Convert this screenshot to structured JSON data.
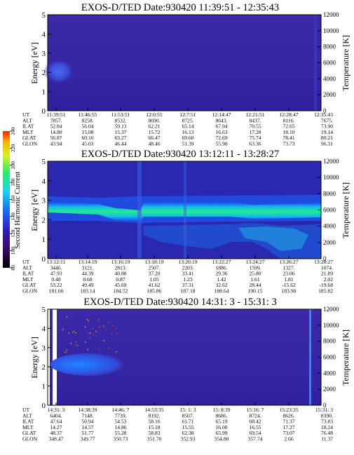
{
  "panels": [
    {
      "title": "EXOS-D/TED   Date:930420  11:39:51 - 12:35:43",
      "y_label": "Energy [eV]",
      "y2_label": "Temperature [K]",
      "y_ticks": [
        "0",
        "1",
        "2",
        "3",
        "4",
        "5"
      ],
      "y2_ticks": [
        "0",
        "2000",
        "4000",
        "6000",
        "8000",
        "10000",
        "12000"
      ],
      "table": {
        "rows": [
          "UT",
          "ALT",
          "ILAT",
          "MLT",
          "GLAT",
          "GLON"
        ],
        "columns": [
          [
            "11:39:51",
            "7857.",
            "52.84",
            "14.80",
            "56.87",
            "43.94"
          ],
          [
            "11:46:55",
            "8258.",
            "56.04",
            "15.08",
            "60.10",
            "45.03"
          ],
          [
            "11:53:51",
            "8532.",
            "59.13",
            "15.37",
            "63.27",
            "46.44"
          ],
          [
            "12:0:55",
            "8690.",
            "62.21",
            "15.72",
            "66.47",
            "48.46"
          ],
          [
            "12:7:51",
            "8725.",
            "65.14",
            "16.13",
            "69.60",
            "51.39"
          ],
          [
            "12:14:47",
            "8643.",
            "67.94",
            "16.63",
            "72.69",
            "55.90"
          ],
          [
            "12:21:51",
            "8437.",
            "70.55",
            "17.28",
            "75.74",
            "63.36"
          ],
          [
            "12:28:47",
            "8116.",
            "72.65",
            "18.10",
            "78.41",
            "73.73"
          ],
          [
            "12:35:43",
            "7675.",
            "73.90",
            "19.14",
            "80.21",
            "96.31"
          ]
        ]
      }
    },
    {
      "title": "EXOS-D/TED   Date:930420  13:12:11 - 13:28:27",
      "y_label": "Energy [eV]",
      "y2_label": "Temperature [K]",
      "y_ticks": [
        "0",
        "1",
        "2",
        "3",
        "4",
        "5"
      ],
      "y2_ticks": [
        "0",
        "2000",
        "4000",
        "6000",
        "8000",
        "10000",
        "12000"
      ],
      "table": {
        "rows": [
          "UT",
          "ALT",
          "ILAT",
          "MLT",
          "GLAT",
          "GLON"
        ],
        "columns": [
          [
            "13:12:11",
            "3446.",
            "47.93",
            "0.48",
            "53.22",
            "181.60"
          ],
          [
            "13:14:19",
            "3121.",
            "44.39",
            "0.68",
            "49.49",
            "183.14"
          ],
          [
            "13:16:19",
            "2813.",
            "40.88",
            "0.87",
            "45.69",
            "184.52"
          ],
          [
            "13:18:19",
            "2507.",
            "37.20",
            "1.05",
            "41.62",
            "185.86"
          ],
          [
            "13:20:19",
            "2203.",
            "33.41",
            "1.23",
            "37.31",
            "187.18"
          ],
          [
            "13:22:27",
            "1886.",
            "29.36",
            "1.42",
            "32.62",
            "188.64"
          ],
          [
            "13:24:27",
            "1599.",
            "25.80",
            "1.61",
            "28.44",
            "190.15"
          ],
          [
            "13:26:27",
            "1327.",
            "23.06",
            "1.81",
            "-15.62",
            "183.90"
          ],
          [
            "13:28:27",
            "1074.",
            "21.89",
            "2.02",
            "-19.68",
            "185.82"
          ]
        ]
      }
    },
    {
      "title": "EXOS-D/TED   Date:930420  14:31: 3 - 15:31: 3",
      "y_label": "Energy [eV]",
      "y2_label": "Temperature [K]",
      "y_ticks": [
        "0",
        "1",
        "2",
        "3",
        "4",
        "5"
      ],
      "y2_ticks": [
        "0",
        "2000",
        "4000",
        "6000",
        "8000",
        "10000",
        "12000"
      ],
      "table": {
        "rows": [
          "UT",
          "ALT",
          "ILAT",
          "MLT",
          "GLAT",
          "GLON"
        ],
        "columns": [
          [
            "14:31: 3",
            "6404.",
            "47.64",
            "14.27",
            "48.37",
            "348.47"
          ],
          [
            "14:38:39",
            "7148.",
            "50.94",
            "14.57",
            "51.77",
            "349.77"
          ],
          [
            "14:46: 7",
            "7739.",
            "54.53",
            "14.86",
            "55.28",
            "350.73"
          ],
          [
            "14:53:35",
            "8192.",
            "58.16",
            "15.18",
            "58.83",
            "351.70"
          ],
          [
            "15: 1: 3",
            "8507.",
            "61.71",
            "15.55",
            "62.38",
            "352.93"
          ],
          [
            "15: 8:39",
            "8686.",
            "65.19",
            "16.00",
            "65.99",
            "354.80"
          ],
          [
            "15:16: 7",
            "8724.",
            "68.42",
            "16.55",
            "69.54",
            "357.74"
          ],
          [
            "15:23:35",
            "8626.",
            "71.37",
            "17.27",
            "73.07",
            "2.66"
          ],
          [
            "15:31: 3",
            "8390.",
            "73.83",
            "18.24",
            "76.48",
            "11.37"
          ]
        ]
      }
    }
  ],
  "colorbar": {
    "label": "Second Harmonic Current",
    "ticks": [
      "80",
      "100",
      "120",
      "140",
      "160",
      "180",
      "200",
      "220",
      "240"
    ],
    "colors": [
      "#000000",
      "#3a0a68",
      "#2b1ec8",
      "#1a6ef5",
      "#14d6f0",
      "#26f066",
      "#d8f020",
      "#ffb400",
      "#ff1e00"
    ]
  },
  "chart_data": [
    {
      "type": "heatmap",
      "title": "EXOS-D/TED   Date:930420  11:39:51 - 12:35:43",
      "xlabel": "UT",
      "ylabel": "Energy [eV]",
      "y2label": "Temperature [K]",
      "ylim": [
        0,
        5
      ],
      "y2lim": [
        0,
        12000
      ],
      "x_ticks": [
        "11:39:51",
        "11:46:55",
        "11:53:51",
        "12:0:55",
        "12:7:51",
        "12:14:47",
        "12:21:51",
        "12:28:47",
        "12:35:43"
      ],
      "colorbar_label": "Second Harmonic Current",
      "colorbar_range": [
        80,
        240
      ],
      "bands": [
        {
          "x_start": "11:39:51",
          "x_end": "11:50:00",
          "energy_low": 1.6,
          "energy_high": 2.6,
          "level": 115
        },
        {
          "x_start": "11:39:51",
          "x_end": "12:35:43",
          "energy_low": 0.0,
          "energy_high": 5.0,
          "level": 105
        }
      ]
    },
    {
      "type": "heatmap",
      "title": "EXOS-D/TED   Date:930420  13:12:11 - 13:28:27",
      "xlabel": "UT",
      "ylabel": "Energy [eV]",
      "y2label": "Temperature [K]",
      "ylim": [
        0,
        5
      ],
      "y2lim": [
        0,
        12000
      ],
      "x_ticks": [
        "13:12:11",
        "13:14:19",
        "13:16:19",
        "13:18:19",
        "13:20:19",
        "13:22:27",
        "13:24:27",
        "13:26:27",
        "13:28:27"
      ],
      "colorbar_label": "Second Harmonic Current",
      "colorbar_range": [
        80,
        240
      ],
      "peak_band_energy": [
        {
          "time": "13:12:11",
          "energy": 2.6
        },
        {
          "time": "13:14:19",
          "energy": 2.5
        },
        {
          "time": "13:16:19",
          "energy": 2.3
        },
        {
          "time": "13:17:19",
          "energy": 2.2
        },
        {
          "time": "13:18:19",
          "energy": 2.6
        },
        {
          "time": "13:20:19",
          "energy": 2.7
        },
        {
          "time": "13:22:27",
          "energy": 2.6
        },
        {
          "time": "13:24:27",
          "energy": 2.5
        },
        {
          "time": "13:26:27",
          "energy": 2.5
        },
        {
          "time": "13:28:27",
          "energy": 2.5
        }
      ],
      "peak_level": 175
    },
    {
      "type": "heatmap",
      "title": "EXOS-D/TED   Date:930420  14:31: 3 - 15:31: 3",
      "xlabel": "UT",
      "ylabel": "Energy [eV]",
      "y2label": "Temperature [K]",
      "ylim": [
        0,
        5
      ],
      "y2lim": [
        0,
        12000
      ],
      "x_ticks": [
        "14:31: 3",
        "14:38:39",
        "14:46: 7",
        "14:53:35",
        "15: 1: 3",
        "15: 8:39",
        "15:16: 7",
        "15:23:35",
        "15:31: 3"
      ],
      "colorbar_label": "Second Harmonic Current",
      "colorbar_range": [
        80,
        240
      ],
      "bands": [
        {
          "x_start": "14:33:00",
          "x_end": "14:50:00",
          "energy_low": 1.7,
          "energy_high": 2.6,
          "level": 140
        }
      ]
    }
  ]
}
